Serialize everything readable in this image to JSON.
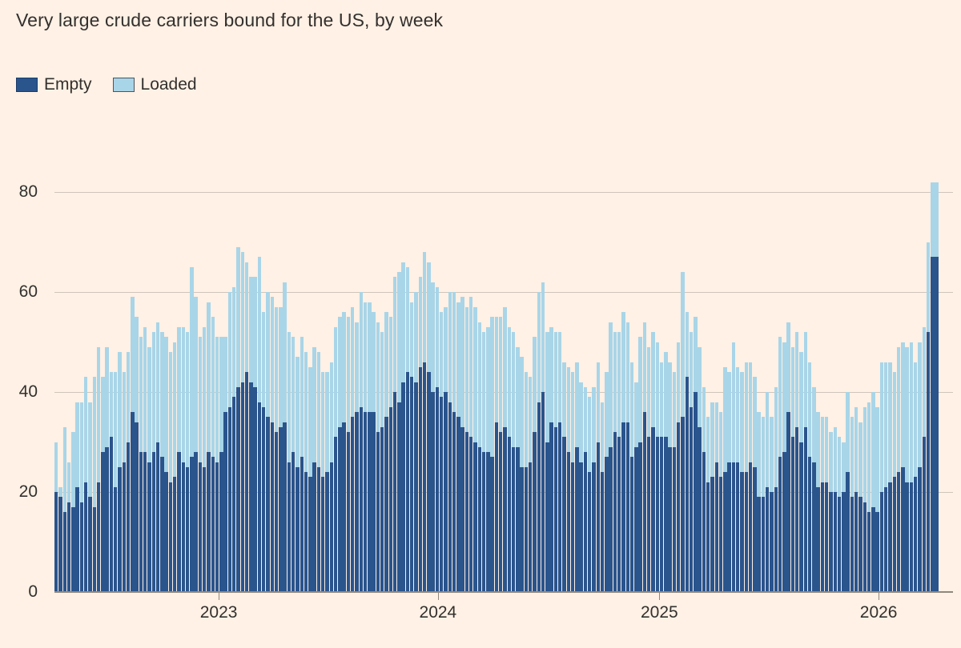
{
  "title": "Very large crude carriers bound for the US, by week",
  "legend": [
    {
      "label": "Empty",
      "color": "#2a548c",
      "border": "#1c3c69"
    },
    {
      "label": "Loaded",
      "color": "#a9d5e8",
      "border": "#4a545e"
    }
  ],
  "colors": {
    "background": "#fff1e5",
    "text": "#33302e",
    "grid": "#cfc5ba",
    "axis": "#90887e",
    "tick": "#90887e",
    "empty_bar": "#2a548c",
    "loaded_bar": "#a9d5e8"
  },
  "chart_data": {
    "type": "bar",
    "stacked": true,
    "title": "Very large crude carriers bound for the US, by week",
    "x": "weekly bars, ~April 2022 to ~April 2026",
    "ylim": [
      0,
      85
    ],
    "y_ticks": [
      0,
      20,
      40,
      60,
      80
    ],
    "x_ticks": [
      {
        "label": "2023",
        "week": 38.8
      },
      {
        "label": "2024",
        "week": 90.6
      },
      {
        "label": "2025",
        "week": 142.9
      },
      {
        "label": "2026",
        "week": 194.7
      }
    ],
    "grid": "horizontal",
    "legend_position": "top-left",
    "series": [
      {
        "name": "Empty",
        "color": "#2a548c",
        "values": [
          20,
          19,
          16,
          18,
          17,
          21,
          18,
          22,
          19,
          17,
          22,
          28,
          29,
          31,
          21,
          25,
          26,
          30,
          36,
          34,
          28,
          28,
          26,
          28,
          30,
          27,
          24,
          22,
          23,
          28,
          26,
          25,
          27,
          28,
          26,
          25,
          28,
          27,
          26,
          28,
          36,
          37,
          39,
          41,
          42,
          44,
          42,
          41,
          38,
          37,
          35,
          34,
          32,
          33,
          34,
          26,
          28,
          25,
          27,
          24,
          23,
          26,
          25,
          23,
          24,
          26,
          31,
          33,
          34,
          32,
          35,
          36,
          37,
          36,
          36,
          36,
          32,
          33,
          35,
          37,
          40,
          38,
          42,
          44,
          43,
          42,
          45,
          46,
          44,
          40,
          41,
          39,
          40,
          38,
          36,
          35,
          33,
          32,
          31,
          30,
          29,
          28,
          28,
          27,
          34,
          32,
          33,
          31,
          29,
          29,
          25,
          25,
          26,
          32,
          38,
          40,
          30,
          34,
          33,
          34,
          31,
          28,
          26,
          29,
          26,
          28,
          24,
          26,
          30,
          24,
          27,
          29,
          32,
          31,
          34,
          34,
          27,
          29,
          30,
          36,
          31,
          33,
          31,
          31,
          31,
          29,
          29,
          34,
          35,
          43,
          37,
          40,
          33,
          28,
          22,
          23,
          26,
          23,
          24,
          26,
          26,
          26,
          24,
          24,
          26,
          25,
          19,
          19,
          21,
          20,
          21,
          27,
          28,
          36,
          31,
          33,
          30,
          33,
          27,
          26,
          21,
          22,
          22,
          20,
          20,
          19,
          20,
          24,
          19,
          20,
          19,
          18,
          16,
          17,
          16,
          20,
          21,
          22,
          23,
          24,
          25,
          22,
          22,
          23,
          25,
          31,
          52,
          67,
          67
        ]
      },
      {
        "name": "Loaded",
        "color": "#a9d5e8",
        "values": [
          10,
          2,
          17,
          8,
          15,
          17,
          20,
          21,
          19,
          26,
          27,
          15,
          20,
          13,
          23,
          23,
          18,
          18,
          23,
          21,
          23,
          25,
          23,
          24,
          24,
          25,
          27,
          26,
          27,
          25,
          27,
          27,
          38,
          31,
          25,
          28,
          30,
          28,
          25,
          23,
          15,
          23,
          22,
          28,
          26,
          22,
          21,
          22,
          29,
          19,
          25,
          25,
          25,
          24,
          28,
          26,
          23,
          22,
          24,
          24,
          22,
          23,
          23,
          21,
          20,
          20,
          22,
          22,
          22,
          23,
          22,
          18,
          23,
          22,
          22,
          20,
          22,
          19,
          21,
          18,
          23,
          26,
          24,
          21,
          15,
          18,
          18,
          22,
          22,
          22,
          20,
          17,
          17,
          22,
          24,
          23,
          26,
          25,
          28,
          27,
          25,
          24,
          25,
          28,
          21,
          23,
          24,
          22,
          23,
          20,
          22,
          19,
          17,
          19,
          22,
          22,
          22,
          19,
          19,
          18,
          15,
          17,
          18,
          17,
          16,
          13,
          15,
          15,
          16,
          14,
          17,
          25,
          20,
          21,
          22,
          20,
          19,
          13,
          21,
          18,
          18,
          19,
          19,
          15,
          17,
          17,
          15,
          16,
          29,
          13,
          15,
          15,
          16,
          13,
          13,
          15,
          12,
          13,
          21,
          18,
          24,
          19,
          20,
          22,
          20,
          18,
          17,
          16,
          19,
          15,
          20,
          24,
          22,
          18,
          18,
          19,
          18,
          19,
          19,
          15,
          15,
          13,
          13,
          12,
          13,
          12,
          10,
          16,
          16,
          17,
          15,
          19,
          22,
          23,
          21,
          26,
          25,
          24,
          21,
          25,
          25,
          27,
          28,
          23,
          25,
          22,
          18,
          15,
          15
        ]
      }
    ]
  }
}
